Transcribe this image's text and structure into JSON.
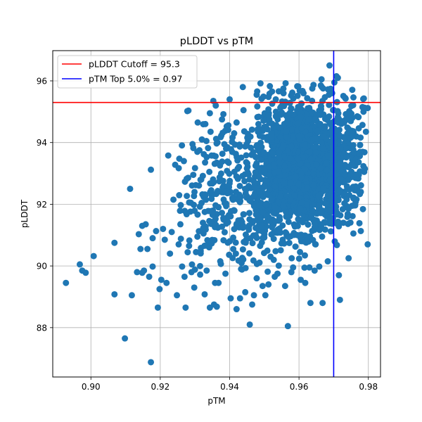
{
  "chart_data": {
    "type": "scatter",
    "title": "pLDDT vs pTM",
    "xlabel": "pTM",
    "ylabel": "pLDDT",
    "xlim": [
      0.889,
      0.9835
    ],
    "ylim": [
      86.4,
      96.98
    ],
    "xticks": [
      "0.90",
      "0.92",
      "0.94",
      "0.96",
      "0.98"
    ],
    "xtick_values": [
      0.9,
      0.92,
      0.94,
      0.96,
      0.98
    ],
    "yticks": [
      "88",
      "90",
      "92",
      "94",
      "96"
    ],
    "ytick_values": [
      88,
      90,
      92,
      94,
      96
    ],
    "grid": true,
    "legend_position": "top-left",
    "point_color": "#1f77b4",
    "reference_lines": [
      {
        "orientation": "horizontal",
        "value": 95.3,
        "label": "pLDDT Cutoff = 95.3",
        "color": "#ff0000"
      },
      {
        "orientation": "vertical",
        "value": 0.97,
        "label": "pTM Top 5.0% = 0.97",
        "color": "#0000ff"
      }
    ],
    "points": [
      [
        0.8928,
        89.45
      ],
      [
        0.8968,
        90.05
      ],
      [
        0.8975,
        89.85
      ],
      [
        0.8985,
        89.78
      ],
      [
        0.9008,
        90.32
      ],
      [
        0.9068,
        89.08
      ],
      [
        0.9068,
        90.75
      ],
      [
        0.9098,
        87.65
      ],
      [
        0.9113,
        92.5
      ],
      [
        0.9118,
        89.05
      ],
      [
        0.9133,
        89.8
      ],
      [
        0.9138,
        91.03
      ],
      [
        0.9143,
        90.55
      ],
      [
        0.9148,
        89.78
      ],
      [
        0.9148,
        91.3
      ],
      [
        0.9153,
        89.85
      ],
      [
        0.9158,
        91.35
      ],
      [
        0.9163,
        90.55
      ],
      [
        0.9168,
        89.65
      ],
      [
        0.9173,
        93.12
      ],
      [
        0.9173,
        86.88
      ],
      [
        0.9178,
        90.9
      ],
      [
        0.9178,
        89.98
      ],
      [
        0.9188,
        91.13
      ],
      [
        0.9193,
        88.65
      ],
      [
        0.9198,
        89.25
      ],
      [
        0.9203,
        89.55
      ],
      [
        0.9208,
        91.2
      ],
      [
        0.9213,
        90.85
      ],
      [
        0.9218,
        89.45
      ],
      [
        0.9223,
        93.58
      ],
      [
        0.9228,
        90.4
      ],
      [
        0.9233,
        91.1
      ],
      [
        0.9238,
        92.15
      ],
      [
        0.9243,
        93.28
      ],
      [
        0.9248,
        89.05
      ],
      [
        0.9253,
        90.7
      ],
      [
        0.9258,
        91.35
      ],
      [
        0.9263,
        89.98
      ],
      [
        0.9268,
        93.4
      ],
      [
        0.9273,
        88.65
      ],
      [
        0.9278,
        95.02
      ],
      [
        0.9283,
        90.65
      ],
      [
        0.9288,
        92.05
      ],
      [
        0.9293,
        93.95
      ],
      [
        0.9298,
        89.3
      ],
      [
        0.9303,
        90.45
      ],
      [
        0.9308,
        94.65
      ],
      [
        0.9313,
        93.75
      ],
      [
        0.9318,
        92.8
      ],
      [
        0.9323,
        91.4
      ],
      [
        0.9328,
        89.08
      ],
      [
        0.9333,
        94.05
      ],
      [
        0.9338,
        90.7
      ],
      [
        0.9343,
        88.65
      ],
      [
        0.9348,
        92.3
      ],
      [
        0.9353,
        95.35
      ],
      [
        0.9358,
        89.45
      ],
      [
        0.9363,
        93.35
      ],
      [
        0.9368,
        91.9
      ],
      [
        0.9373,
        90.15
      ],
      [
        0.9378,
        94.75
      ],
      [
        0.9383,
        92.6
      ],
      [
        0.9388,
        89.75
      ],
      [
        0.9393,
        93.85
      ],
      [
        0.9398,
        91.65
      ],
      [
        0.9403,
        88.95
      ],
      [
        0.9408,
        92.2
      ],
      [
        0.9413,
        94.3
      ],
      [
        0.9418,
        90.4
      ],
      [
        0.9423,
        93.15
      ],
      [
        0.9428,
        91.25
      ],
      [
        0.9433,
        89.9
      ],
      [
        0.9438,
        95.8
      ],
      [
        0.9443,
        92.75
      ],
      [
        0.9448,
        90.85
      ],
      [
        0.9453,
        94.05
      ],
      [
        0.9458,
        88.1
      ],
      [
        0.9463,
        93.6
      ],
      [
        0.9468,
        91.45
      ],
      [
        0.9473,
        92.9
      ],
      [
        0.9478,
        89.6
      ],
      [
        0.9483,
        94.6
      ],
      [
        0.9488,
        90.65
      ],
      [
        0.9493,
        93.05
      ],
      [
        0.9498,
        91.85
      ],
      [
        0.9503,
        89.05
      ],
      [
        0.9508,
        92.35
      ],
      [
        0.9513,
        94.95
      ],
      [
        0.9518,
        90.3
      ],
      [
        0.9523,
        93.45
      ],
      [
        0.9528,
        91.1
      ],
      [
        0.9533,
        95.4
      ],
      [
        0.9538,
        89.75
      ],
      [
        0.9543,
        92.6
      ],
      [
        0.9548,
        94.2
      ],
      [
        0.9553,
        90.85
      ],
      [
        0.9558,
        93.8
      ],
      [
        0.9563,
        91.6
      ],
      [
        0.9568,
        88.05
      ],
      [
        0.9573,
        92.1
      ],
      [
        0.9578,
        95.1
      ],
      [
        0.9583,
        89.95
      ],
      [
        0.9588,
        93.3
      ],
      [
        0.9593,
        91.3
      ],
      [
        0.9598,
        94.55
      ],
      [
        0.9603,
        90.45
      ],
      [
        0.9608,
        92.85
      ],
      [
        0.9613,
        95.6
      ],
      [
        0.9618,
        89.45
      ],
      [
        0.9623,
        93.95
      ],
      [
        0.9628,
        91.75
      ],
      [
        0.9633,
        88.8
      ],
      [
        0.9638,
        92.4
      ],
      [
        0.9643,
        94.9
      ],
      [
        0.9648,
        90.7
      ],
      [
        0.9653,
        93.55
      ],
      [
        0.9658,
        91.25
      ],
      [
        0.9663,
        95.85
      ],
      [
        0.9668,
        88.8
      ],
      [
        0.9673,
        92.75
      ],
      [
        0.9678,
        94.35
      ],
      [
        0.9683,
        90.15
      ],
      [
        0.9688,
        96.5
      ],
      [
        0.9693,
        93.1
      ],
      [
        0.9698,
        91.55
      ],
      [
        0.9703,
        94.7
      ],
      [
        0.9708,
        96.15
      ],
      [
        0.9713,
        92.2
      ],
      [
        0.9718,
        88.9
      ],
      [
        0.9723,
        93.85
      ],
      [
        0.9728,
        91.4
      ],
      [
        0.9733,
        95.45
      ],
      [
        0.9738,
        92.95
      ],
      [
        0.9743,
        90.25
      ],
      [
        0.9748,
        94.15
      ],
      [
        0.9753,
        91.95
      ],
      [
        0.9758,
        93.4
      ],
      [
        0.9763,
        92.55
      ],
      [
        0.9768,
        94.85
      ],
      [
        0.9773,
        93.65
      ],
      [
        0.9778,
        92.4
      ],
      [
        0.9783,
        95.15
      ],
      [
        0.9788,
        93.05
      ],
      [
        0.9793,
        94.35
      ],
      [
        0.9798,
        90.7
      ],
      [
        0.9798,
        95.12
      ],
      [
        0.9786,
        95.0
      ],
      [
        0.9778,
        92.4
      ],
      [
        0.979,
        93.15
      ],
      [
        0.944,
        95.05
      ],
      [
        0.9492,
        95.42
      ],
      [
        0.9512,
        95.48
      ],
      [
        0.9555,
        95.75
      ],
      [
        0.9602,
        95.68
      ],
      [
        0.9665,
        96.05
      ],
      [
        0.9702,
        95.95
      ],
      [
        0.9712,
        96.1
      ],
      [
        0.9478,
        95.55
      ],
      [
        0.9598,
        95.82
      ],
      [
        0.94,
        95.4
      ],
      [
        0.936,
        95.2
      ],
      [
        0.9382,
        94.92
      ],
      [
        0.942,
        94.65
      ],
      [
        0.9345,
        94.35
      ],
      [
        0.932,
        94.1
      ],
      [
        0.933,
        94.6
      ],
      [
        0.9365,
        94.0
      ],
      [
        0.9512,
        89.4
      ],
      [
        0.953,
        89.65
      ],
      [
        0.9495,
        89.35
      ],
      [
        0.9445,
        89.15
      ],
      [
        0.943,
        88.95
      ],
      [
        0.947,
        89.05
      ],
      [
        0.956,
        89.35
      ],
      [
        0.9605,
        89.55
      ],
      [
        0.9645,
        89.85
      ],
      [
        0.9715,
        89.7
      ],
      [
        0.963,
        89.95
      ],
      [
        0.9578,
        89.8
      ],
      [
        0.9355,
        88.75
      ],
      [
        0.9363,
        88.68
      ],
      [
        0.942,
        88.6
      ],
      [
        0.9465,
        88.75
      ],
      [
        0.9368,
        89.45
      ],
      [
        0.93,
        89.88
      ],
      [
        0.9315,
        89.72
      ],
      [
        0.929,
        89.8
      ],
      [
        0.927,
        89.65
      ]
    ]
  }
}
